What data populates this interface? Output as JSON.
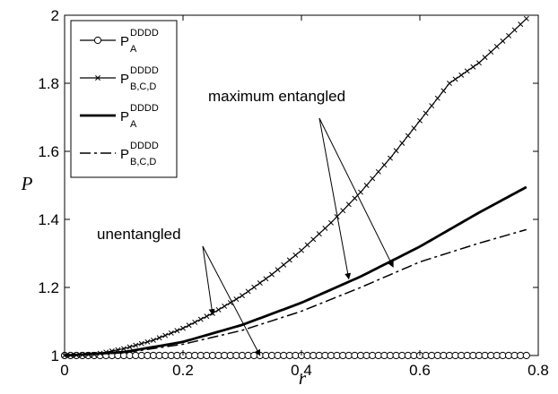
{
  "chart_data": {
    "type": "line",
    "xlabel": "r",
    "ylabel": "P",
    "xlim": [
      0,
      0.8
    ],
    "ylim": [
      1,
      2
    ],
    "x_ticks": [
      0,
      0.2,
      0.4,
      0.6,
      0.8
    ],
    "x_tick_labels": [
      "0",
      "0.2",
      "0.4",
      "0.6",
      "0.8"
    ],
    "y_ticks": [
      1,
      1.2,
      1.4,
      1.6,
      1.8,
      2
    ],
    "y_tick_labels": [
      "1",
      "1.2",
      "1.4",
      "1.6",
      "1.8",
      "2"
    ],
    "grid": false,
    "legend_position": "top-left",
    "series": [
      {
        "legend_main": "P",
        "legend_sub": "A",
        "legend_sup": "DDDD",
        "style": "solid-circles",
        "color": "#000000",
        "x": [
          0,
          0.78
        ],
        "y": [
          1,
          1
        ]
      },
      {
        "legend_main": "P",
        "legend_sub": "B,C,D",
        "legend_sup": "DDDD",
        "style": "solid-crosses",
        "color": "#000000",
        "x": [
          0,
          0.05,
          0.1,
          0.15,
          0.2,
          0.25,
          0.3,
          0.35,
          0.4,
          0.45,
          0.5,
          0.55,
          0.6,
          0.65,
          0.7,
          0.75,
          0.78
        ],
        "y": [
          1,
          1.003,
          1.02,
          1.045,
          1.08,
          1.124,
          1.176,
          1.238,
          1.309,
          1.39,
          1.48,
          1.58,
          1.69,
          1.8,
          1.86,
          1.94,
          1.99
        ]
      },
      {
        "legend_main": "P",
        "legend_sub": "A",
        "legend_sup": "DDDD",
        "style": "solid-thick",
        "color": "#000000",
        "x": [
          0,
          0.1,
          0.2,
          0.3,
          0.4,
          0.5,
          0.6,
          0.7,
          0.78
        ],
        "y": [
          1,
          1.01,
          1.04,
          1.09,
          1.155,
          1.232,
          1.32,
          1.42,
          1.495
        ]
      },
      {
        "legend_main": "P",
        "legend_sub": "B,C,D",
        "legend_sup": "DDDD",
        "style": "dashdot",
        "color": "#000000",
        "x": [
          0,
          0.1,
          0.2,
          0.3,
          0.4,
          0.5,
          0.6,
          0.7,
          0.78
        ],
        "y": [
          1,
          1.008,
          1.033,
          1.074,
          1.13,
          1.2,
          1.275,
          1.33,
          1.37
        ]
      }
    ],
    "annotations": [
      {
        "text": "maximum entangled",
        "arrows_to": [
          [
            0.48,
            1.225
          ],
          [
            0.555,
            1.26
          ]
        ]
      },
      {
        "text": "unentangled",
        "arrows_to": [
          [
            0.25,
            1.12
          ],
          [
            0.33,
            1.0
          ]
        ]
      }
    ]
  }
}
